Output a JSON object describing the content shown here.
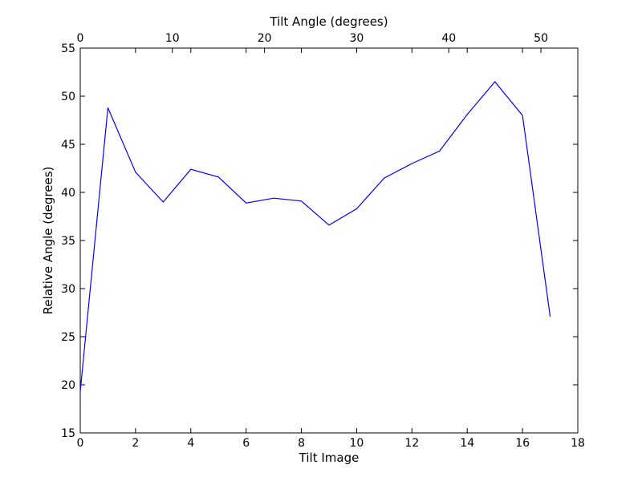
{
  "chart_data": {
    "type": "line",
    "xlabel": "Tilt Image",
    "ylabel": "Relative Angle (degrees)",
    "top_xlabel": "Tilt Angle (degrees)",
    "xlim": [
      0,
      18
    ],
    "ylim": [
      15,
      55
    ],
    "top_xlim": [
      0,
      54
    ],
    "x_ticks": [
      0,
      2,
      4,
      6,
      8,
      10,
      12,
      14,
      16,
      18
    ],
    "y_ticks": [
      15,
      20,
      25,
      30,
      35,
      40,
      45,
      50,
      55
    ],
    "top_x_ticks": [
      0,
      10,
      20,
      30,
      40,
      50
    ],
    "grid": false,
    "line_color": "#0000ff",
    "series": [
      {
        "x": [
          0,
          1,
          2,
          3,
          4,
          5,
          6,
          7,
          8,
          9,
          10,
          11,
          12,
          13,
          14,
          15,
          16,
          17
        ],
        "values": [
          19.3,
          48.8,
          42.1,
          39.0,
          42.4,
          41.6,
          38.9,
          39.4,
          39.1,
          36.6,
          38.3,
          41.5,
          43.0,
          44.3,
          48.1,
          51.5,
          48.0,
          27.1
        ]
      }
    ]
  }
}
